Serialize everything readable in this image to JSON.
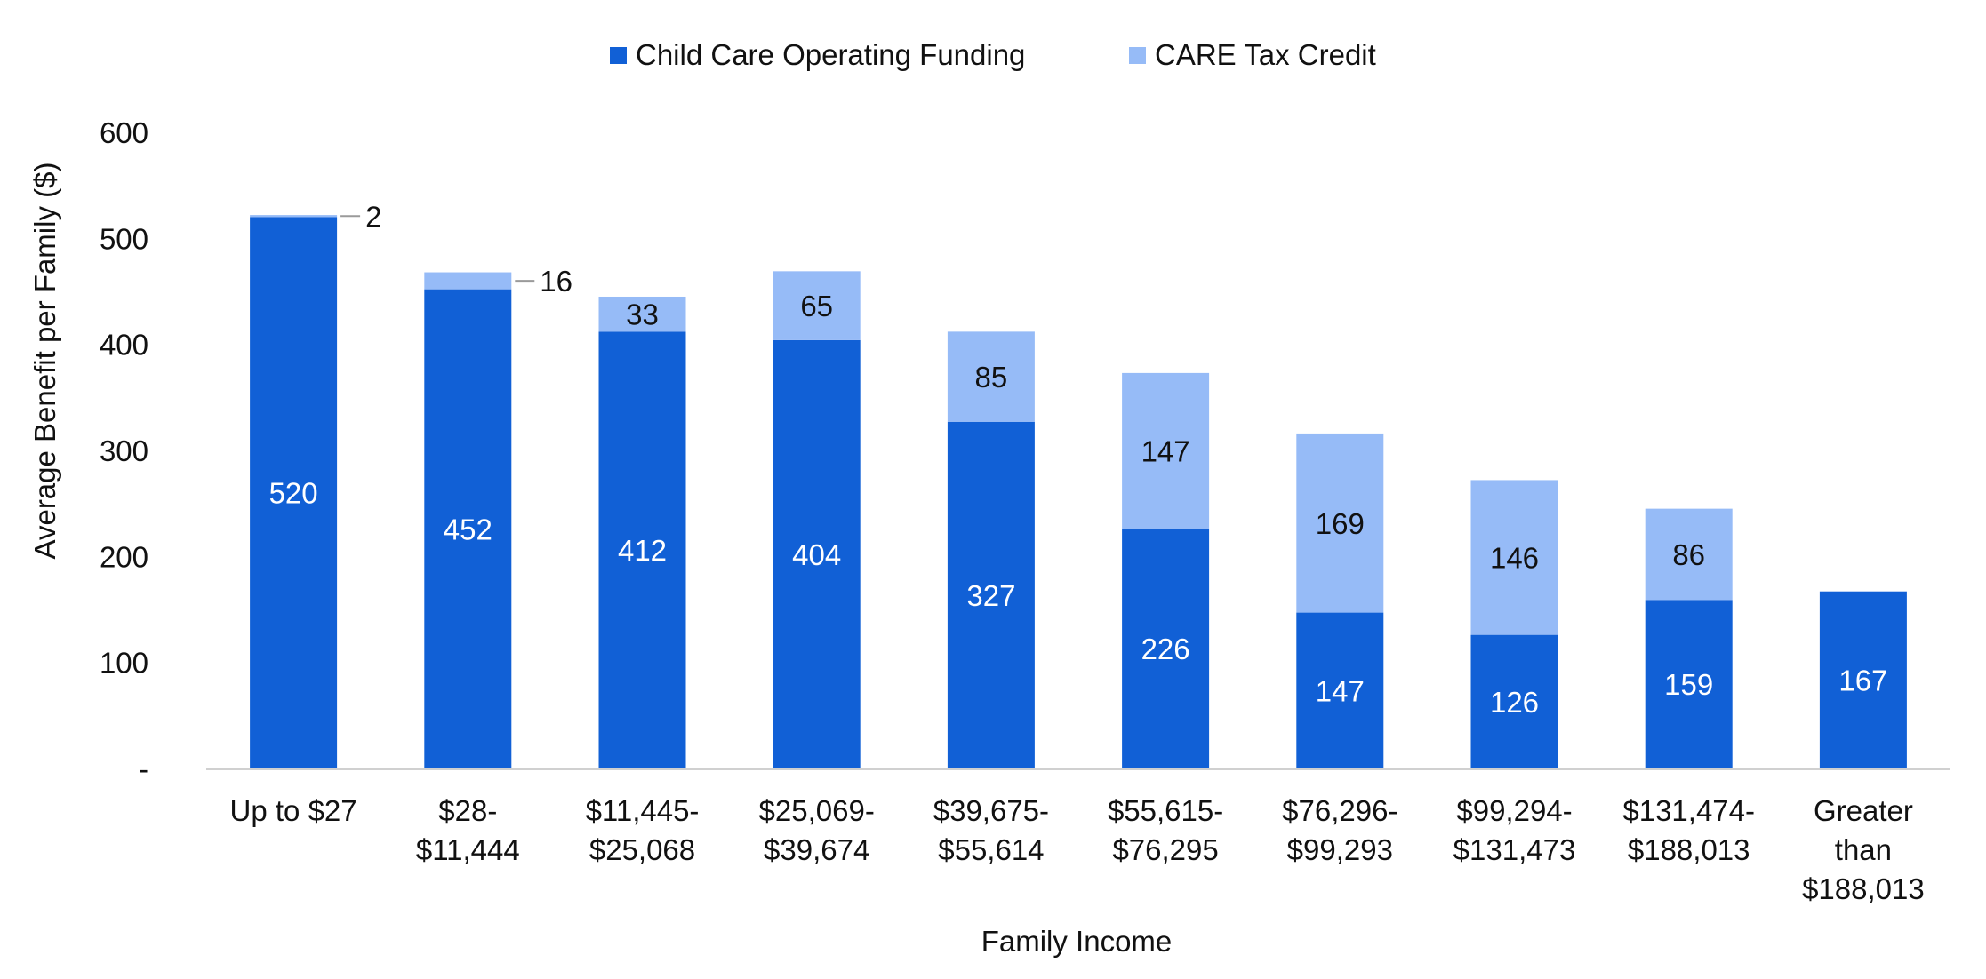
{
  "chart_data": {
    "type": "bar",
    "stacked": true,
    "xlabel": "Family Income",
    "ylabel": "Average Benefit per  Family ($)",
    "ylim": [
      0,
      600
    ],
    "yticks": [
      0,
      100,
      200,
      300,
      400,
      500,
      600
    ],
    "ytick_labels": [
      "-",
      "100",
      "200",
      "300",
      "400",
      "500",
      "600"
    ],
    "grid": false,
    "legend_position": "top-center",
    "categories": [
      [
        "Up to $27"
      ],
      [
        "$28-",
        "$11,444"
      ],
      [
        "$11,445-",
        "$25,068"
      ],
      [
        "$25,069-",
        "$39,674"
      ],
      [
        "$39,675-",
        "$55,614"
      ],
      [
        "$55,615-",
        "$76,295"
      ],
      [
        "$76,296-",
        "$99,293"
      ],
      [
        "$99,294-",
        "$131,473"
      ],
      [
        "$131,474-",
        "$188,013"
      ],
      [
        "Greater",
        "than",
        "$188,013"
      ]
    ],
    "series": [
      {
        "name": "Child Care Operating Funding",
        "color": "#1160D6",
        "label_color": "#ffffff",
        "values": [
          520,
          452,
          412,
          404,
          327,
          226,
          147,
          126,
          159,
          167
        ],
        "labels": [
          "520",
          "452",
          "412",
          "404",
          "327",
          "226",
          "147",
          "126",
          "159",
          "167"
        ]
      },
      {
        "name": "CARE Tax Credit",
        "color": "#96BBF7",
        "label_color": "#111111",
        "values": [
          2,
          16,
          33,
          65,
          85,
          147,
          169,
          146,
          86,
          0
        ],
        "labels": [
          "2",
          "16",
          "33",
          "65",
          "85",
          "147",
          "169",
          "146",
          "86",
          ""
        ]
      }
    ]
  }
}
